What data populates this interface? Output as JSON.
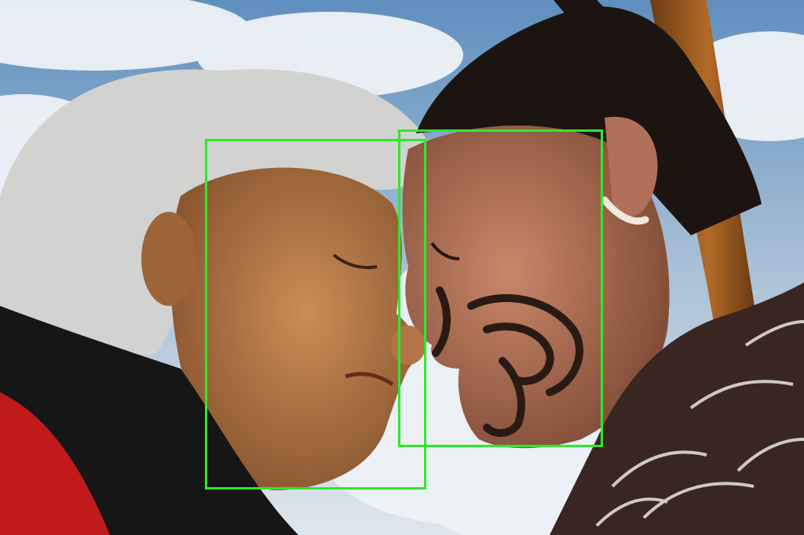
{
  "image": {
    "description_tag": "photo-two-faces-touching-noses-with-detection-boxes"
  },
  "detections": [
    {
      "label_shown": false
    },
    {
      "label_shown": false
    }
  ],
  "colors": {
    "box": "#2ee82e",
    "sky": "#7fa3c8",
    "cloud": "#e9eef3"
  }
}
